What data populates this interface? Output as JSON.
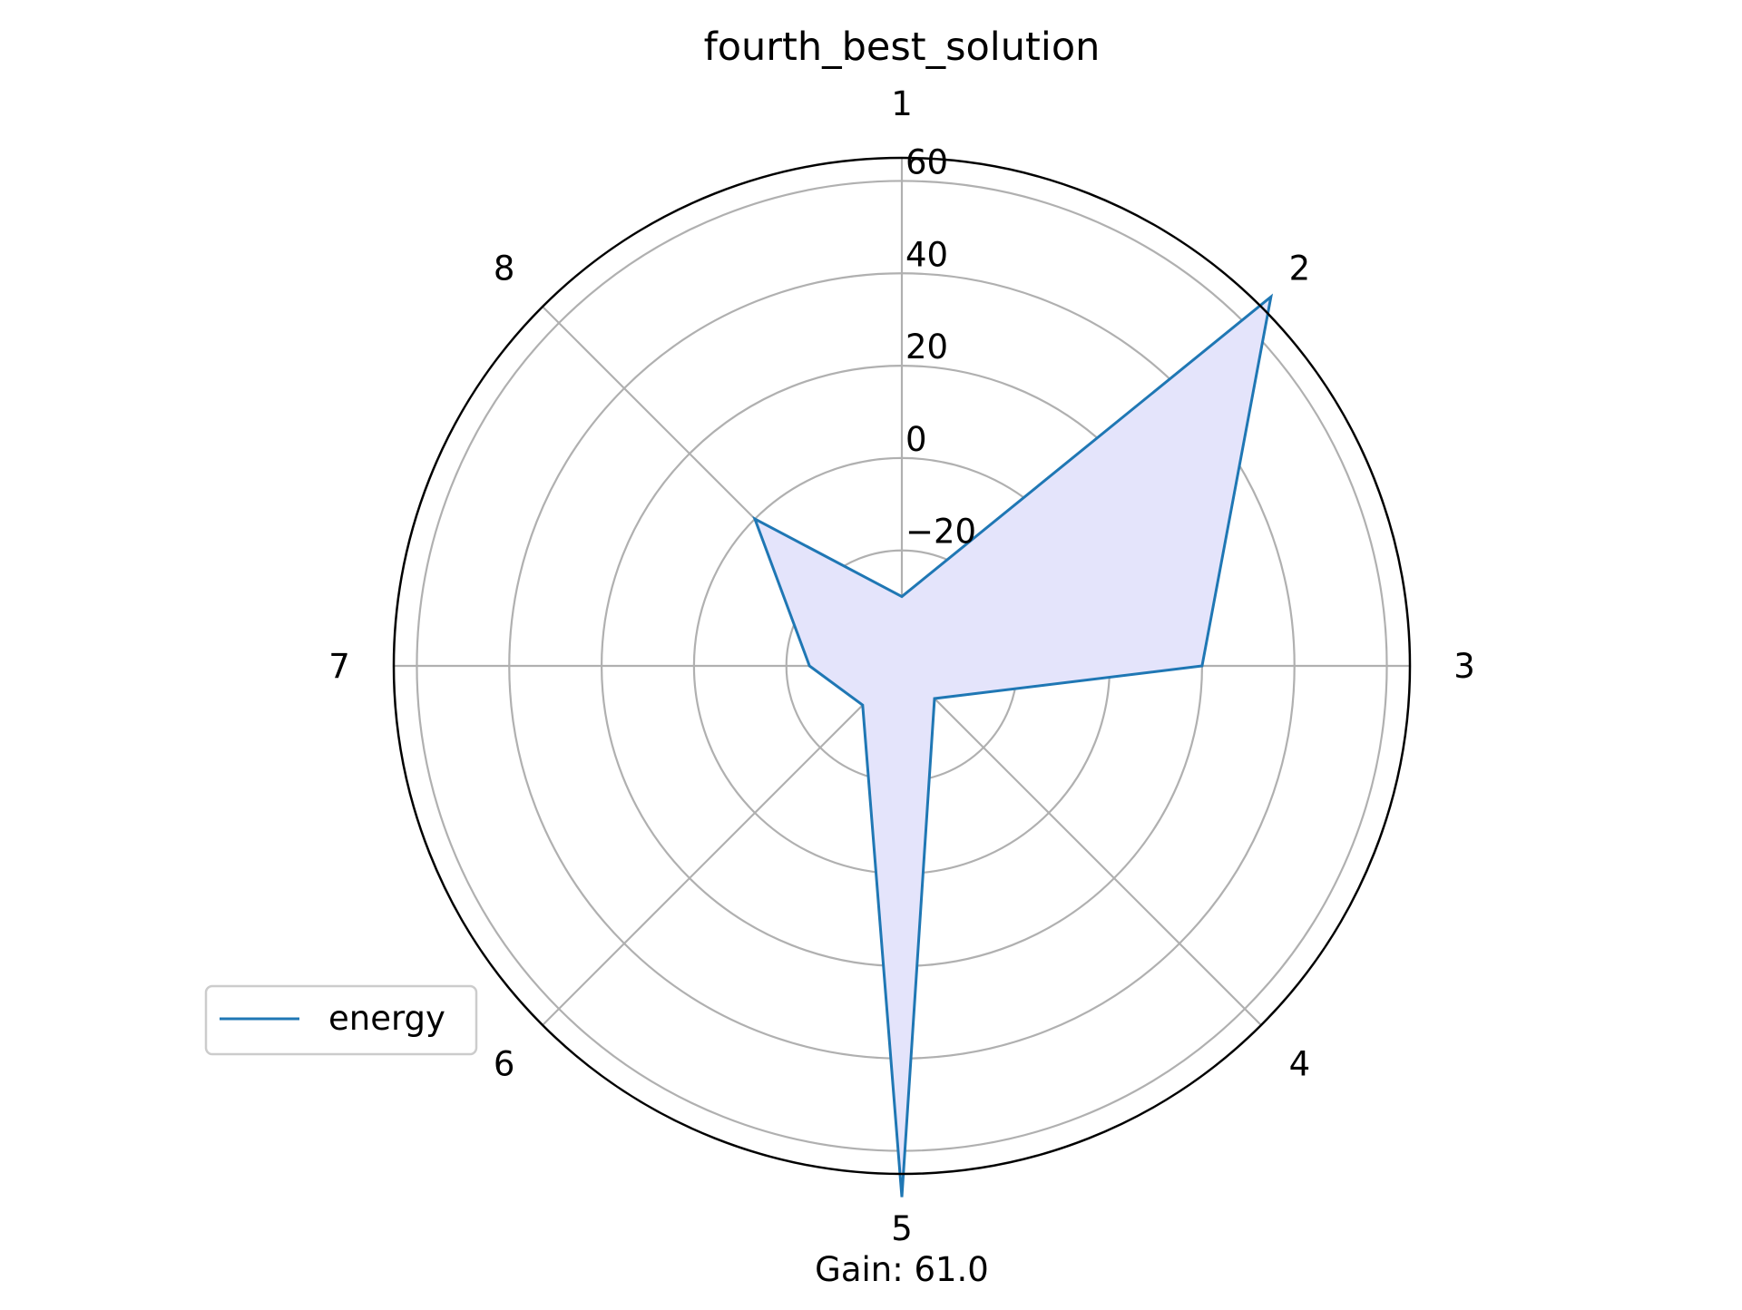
{
  "chart_data": {
    "type": "radar",
    "title": "fourth_best_solution",
    "categories": [
      "1",
      "2",
      "3",
      "4",
      "5",
      "6",
      "7",
      "8"
    ],
    "series": [
      {
        "name": "energy",
        "values": [
          -30,
          68,
          20,
          -35,
          70,
          -33,
          -25,
          0
        ]
      }
    ],
    "r_ticks": [
      -20,
      0,
      20,
      40,
      60
    ],
    "r_tick_labels": [
      "−20",
      "0",
      "20",
      "40",
      "60"
    ],
    "rlim": [
      -45,
      65
    ],
    "grid": true,
    "legend_position": "lower-left",
    "annotation": "Gain: 61.0",
    "colors": {
      "line": "#1f77b4",
      "fill": "#e4e4fb",
      "grid": "#b0b0b0",
      "frame": "#000000"
    }
  }
}
